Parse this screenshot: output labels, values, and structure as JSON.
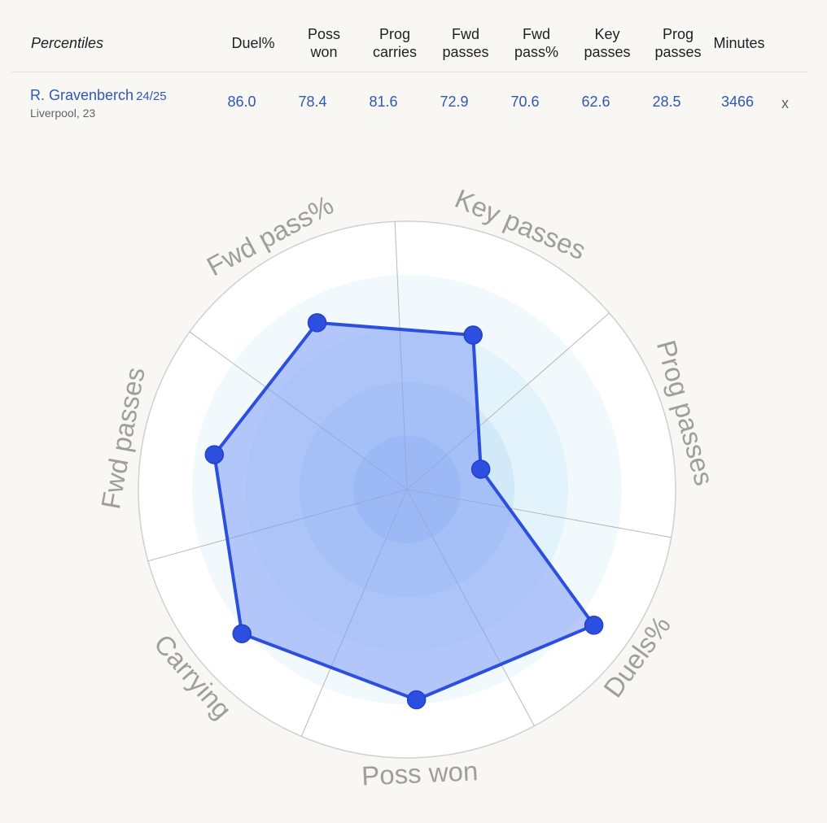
{
  "table": {
    "header_label": "Percentiles",
    "columns": [
      "Duel%",
      "Poss\nwon",
      "Prog\ncarries",
      "Fwd\npasses",
      "Fwd\npass%",
      "Key\npasses",
      "Prog\npasses",
      "Minutes"
    ],
    "player": {
      "name": "R. Gravenberch",
      "season": "24/25",
      "team": "Liverpool, 23",
      "values": [
        "86.0",
        "78.4",
        "81.6",
        "72.9",
        "70.6",
        "62.6",
        "28.5",
        "3466"
      ],
      "remove_label": "x"
    }
  },
  "chart_data": {
    "type": "radar",
    "axes": [
      "Key passes",
      "Prog passes",
      "Duels%",
      "Poss won",
      "Carrying",
      "Fwd passes",
      "Fwd pass%"
    ],
    "series": [
      {
        "values": [
          62.6,
          28.5,
          86.0,
          78.4,
          81.6,
          72.9,
          70.6
        ]
      }
    ],
    "range": [
      0,
      100
    ],
    "colors": {
      "series": "#2d4fe0",
      "fill": "#7f9cf5",
      "ring": "#d0d0d0"
    }
  }
}
